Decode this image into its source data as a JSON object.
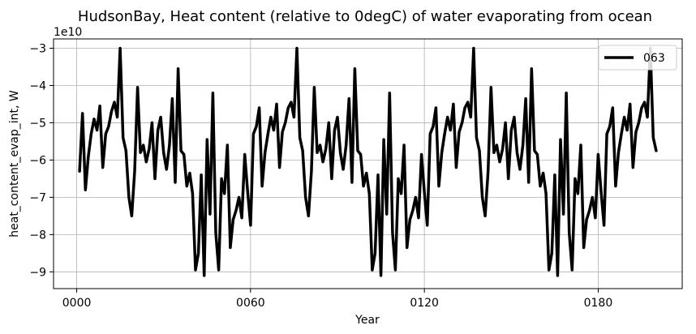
{
  "chart_data": {
    "type": "line",
    "title": "HudsonBay, Heat content (relative to 0degC) of water evaporating from ocean",
    "xlabel": "Year",
    "ylabel": "heat_content_evap_int, W",
    "offset_text": "1e10",
    "scale_factor": 10000000000,
    "xlim": [
      -8,
      209
    ],
    "ylim": [
      -9.45,
      -2.75
    ],
    "xticks": [
      {
        "value": 0,
        "label": "0000"
      },
      {
        "value": 60,
        "label": "0060"
      },
      {
        "value": 120,
        "label": "0120"
      },
      {
        "value": 180,
        "label": "0180"
      }
    ],
    "yticks": [
      {
        "value": -9,
        "label": "−9"
      },
      {
        "value": -8,
        "label": "−8"
      },
      {
        "value": -7,
        "label": "−7"
      },
      {
        "value": -6,
        "label": "−6"
      },
      {
        "value": -5,
        "label": "−5"
      },
      {
        "value": -4,
        "label": "−4"
      },
      {
        "value": -3,
        "label": "−3"
      }
    ],
    "grid": true,
    "legend_position": "top-right",
    "series": [
      {
        "name": "063",
        "color": "#000000",
        "x": [
          1,
          2,
          3,
          4,
          5,
          6,
          7,
          8,
          9,
          10,
          11,
          12,
          13,
          14,
          15,
          16,
          17,
          18,
          19,
          20,
          21,
          22,
          23,
          24,
          25,
          26,
          27,
          28,
          29,
          30,
          31,
          32,
          33,
          34,
          35,
          36,
          37,
          38,
          39,
          40,
          41,
          42,
          43,
          44,
          45,
          46,
          47,
          48,
          49,
          50,
          51,
          52,
          53,
          54,
          55,
          56,
          57,
          58,
          59,
          60,
          61,
          62,
          63,
          64,
          65,
          66,
          67,
          68,
          69,
          70,
          71,
          72,
          73,
          74,
          75,
          76,
          77,
          78,
          79,
          80,
          81,
          82,
          83,
          84,
          85,
          86,
          87,
          88,
          89,
          90,
          91,
          92,
          93,
          94,
          95,
          96,
          97,
          98,
          99,
          100,
          101,
          102,
          103,
          104,
          105,
          106,
          107,
          108,
          109,
          110,
          111,
          112,
          113,
          114,
          115,
          116,
          117,
          118,
          119,
          120,
          121,
          122,
          123,
          124,
          125,
          126,
          127,
          128,
          129,
          130,
          131,
          132,
          133,
          134,
          135,
          136,
          137,
          138,
          139,
          140,
          141,
          142,
          143,
          144,
          145,
          146,
          147,
          148,
          149,
          150,
          151,
          152,
          153,
          154,
          155,
          156,
          157,
          158,
          159,
          160,
          161,
          162,
          163,
          164,
          165,
          166,
          167,
          168,
          169,
          170,
          171,
          172,
          173,
          174,
          175,
          176,
          177,
          178,
          179,
          180,
          181,
          182,
          183,
          184,
          185,
          186,
          187,
          188,
          189,
          190,
          191,
          192,
          193,
          194,
          195,
          196,
          197,
          198,
          199,
          200
        ],
        "y": [
          -6.3,
          -4.75,
          -6.8,
          -5.9,
          -5.3,
          -4.9,
          -5.2,
          -4.55,
          -6.2,
          -5.3,
          -5.1,
          -4.7,
          -4.45,
          -4.85,
          -3.0,
          -5.4,
          -5.75,
          -7.0,
          -7.5,
          -6.3,
          -4.05,
          -5.8,
          -5.6,
          -6.05,
          -5.7,
          -5.0,
          -6.5,
          -5.2,
          -4.85,
          -5.8,
          -6.25,
          -5.6,
          -4.35,
          -6.6,
          -3.55,
          -5.75,
          -5.85,
          -6.7,
          -6.35,
          -6.9,
          -8.95,
          -8.5,
          -6.4,
          -9.1,
          -5.45,
          -7.45,
          -4.2,
          -7.95,
          -8.95,
          -6.5,
          -6.9,
          -5.6,
          -8.35,
          -7.6,
          -7.35,
          -7.0,
          -7.55,
          -5.85,
          -6.85,
          -7.75,
          -5.3,
          -5.1,
          -4.6,
          -6.7,
          -5.8,
          -5.3,
          -4.85,
          -5.2,
          -4.5,
          -6.2,
          -5.25,
          -5.0,
          -4.6,
          -4.45,
          -4.85,
          -3.0,
          -5.4,
          -5.75,
          -7.0,
          -7.5,
          -6.3,
          -4.05,
          -5.8,
          -5.6,
          -6.05,
          -5.7,
          -5.0,
          -6.5,
          -5.2,
          -4.85,
          -5.8,
          -6.25,
          -5.6,
          -4.35,
          -6.6,
          -3.55,
          -5.75,
          -5.85,
          -6.7,
          -6.35,
          -6.9,
          -8.95,
          -8.5,
          -6.4,
          -9.1,
          -5.45,
          -7.45,
          -4.2,
          -7.95,
          -8.95,
          -6.5,
          -6.9,
          -5.6,
          -8.35,
          -7.6,
          -7.35,
          -7.0,
          -7.55,
          -5.85,
          -6.85,
          -7.75,
          -5.3,
          -5.1,
          -4.6,
          -6.7,
          -5.8,
          -5.3,
          -4.85,
          -5.2,
          -4.5,
          -6.2,
          -5.25,
          -5.0,
          -4.6,
          -4.45,
          -4.85,
          -3.0,
          -5.4,
          -5.75,
          -7.0,
          -7.5,
          -6.3,
          -4.05,
          -5.8,
          -5.6,
          -6.05,
          -5.7,
          -5.0,
          -6.5,
          -5.2,
          -4.85,
          -5.8,
          -6.25,
          -5.6,
          -4.35,
          -6.6,
          -3.55,
          -5.75,
          -5.85,
          -6.7,
          -6.35,
          -6.9,
          -8.95,
          -8.5,
          -6.4,
          -9.1,
          -5.45,
          -7.45,
          -4.2,
          -7.95,
          -8.95,
          -6.5,
          -6.9,
          -5.6,
          -8.35,
          -7.6,
          -7.35,
          -7.0,
          -7.55,
          -5.85,
          -6.85,
          -7.75,
          -5.3,
          -5.1,
          -4.6,
          -6.7,
          -5.8,
          -5.3,
          -4.85,
          -5.2,
          -4.5,
          -6.2,
          -5.25,
          -5.0,
          -4.6,
          -4.45,
          -4.85,
          -3.0,
          -5.4,
          -5.75
        ]
      }
    ]
  }
}
